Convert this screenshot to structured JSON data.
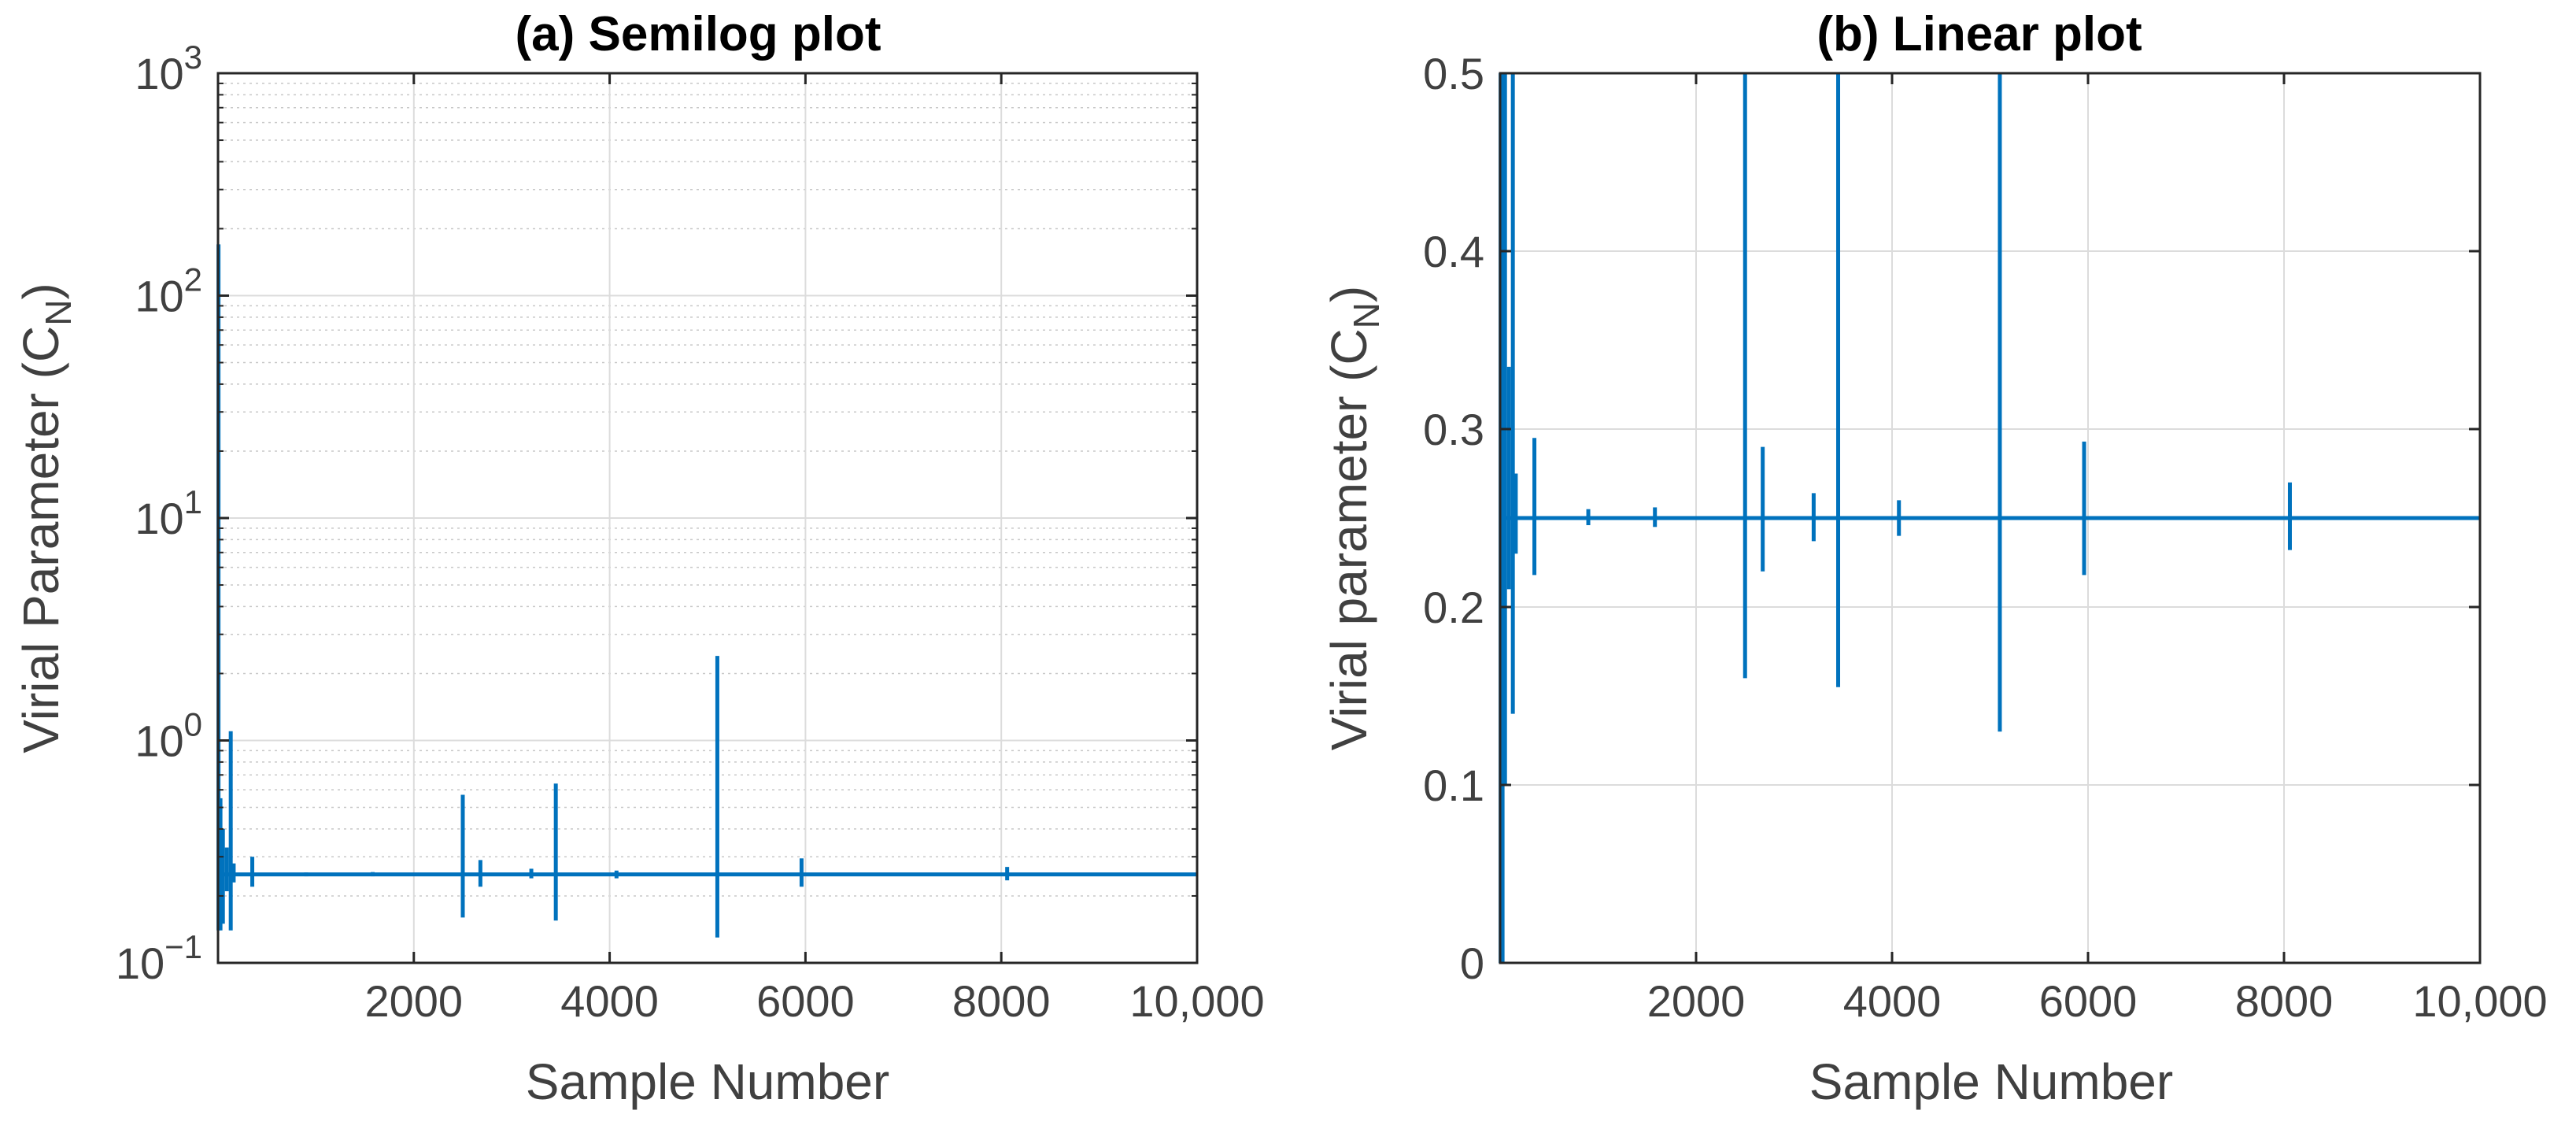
{
  "colors": {
    "series": "#0072BD",
    "grid": "#dcdcdc",
    "minor_grid": "#c8c8c8",
    "axis": "#262626",
    "background": "#ffffff"
  },
  "chart_data": [
    {
      "type": "line",
      "title": "(a) Semilog plot",
      "xlabel": "Sample Number",
      "ylabel": "Virial Parameter (C",
      "ylabel_subscript": "N",
      "ylabel_suffix": ")",
      "yscale": "log",
      "xlim": [
        0,
        10000
      ],
      "ylim": [
        0.1,
        1000
      ],
      "grid": true,
      "minor_grid": true,
      "xticks": [
        2000,
        4000,
        6000,
        8000,
        10000
      ],
      "xtick_labels": [
        "2000",
        "4000",
        "6000",
        "8000",
        "10,000"
      ],
      "yticks": [
        0.1,
        1,
        10,
        100,
        1000
      ],
      "ytick_labels": [
        {
          "base": "10",
          "exp": "−1"
        },
        {
          "base": "10",
          "exp": "0"
        },
        {
          "base": "10",
          "exp": "1"
        },
        {
          "base": "10",
          "exp": "2"
        },
        {
          "base": "10",
          "exp": "3"
        }
      ],
      "baseline": 0.25,
      "spikes": [
        {
          "x": 5,
          "min": 0.14,
          "max": 170
        },
        {
          "x": 25,
          "min": 0.14,
          "max": 0.55
        },
        {
          "x": 50,
          "min": 0.15,
          "max": 0.4
        },
        {
          "x": 90,
          "min": 0.21,
          "max": 0.33
        },
        {
          "x": 130,
          "min": 0.14,
          "max": 1.1
        },
        {
          "x": 160,
          "min": 0.23,
          "max": 0.28
        },
        {
          "x": 350,
          "min": 0.22,
          "max": 0.3
        },
        {
          "x": 900,
          "min": 0.245,
          "max": 0.255
        },
        {
          "x": 1580,
          "min": 0.245,
          "max": 0.256
        },
        {
          "x": 2500,
          "min": 0.16,
          "max": 0.57
        },
        {
          "x": 2680,
          "min": 0.22,
          "max": 0.29
        },
        {
          "x": 3200,
          "min": 0.24,
          "max": 0.265
        },
        {
          "x": 3450,
          "min": 0.155,
          "max": 0.64
        },
        {
          "x": 4070,
          "min": 0.24,
          "max": 0.26
        },
        {
          "x": 5100,
          "min": 0.13,
          "max": 2.4
        },
        {
          "x": 5960,
          "min": 0.22,
          "max": 0.295
        },
        {
          "x": 8060,
          "min": 0.235,
          "max": 0.27
        }
      ]
    },
    {
      "type": "line",
      "title": "(b) Linear plot",
      "xlabel": "Sample Number",
      "ylabel": "Virial parameter (C",
      "ylabel_subscript": "N",
      "ylabel_suffix": ")",
      "yscale": "linear",
      "xlim": [
        0,
        10000
      ],
      "ylim": [
        0,
        0.5
      ],
      "grid": true,
      "minor_grid": false,
      "xticks": [
        2000,
        4000,
        6000,
        8000,
        10000
      ],
      "xtick_labels": [
        "2000",
        "4000",
        "6000",
        "8000",
        "10,000"
      ],
      "yticks": [
        0,
        0.1,
        0.2,
        0.3,
        0.4,
        0.5
      ],
      "ytick_labels": [
        "0",
        "0.1",
        "0.2",
        "0.3",
        "0.4",
        "0.5"
      ],
      "baseline": 0.25,
      "spikes": [
        {
          "x": 5,
          "min": 0,
          "max": 0.5
        },
        {
          "x": 25,
          "min": 0,
          "max": 0.5
        },
        {
          "x": 50,
          "min": 0.1,
          "max": 0.5
        },
        {
          "x": 90,
          "min": 0.21,
          "max": 0.335
        },
        {
          "x": 130,
          "min": 0.14,
          "max": 0.5
        },
        {
          "x": 160,
          "min": 0.23,
          "max": 0.275
        },
        {
          "x": 350,
          "min": 0.218,
          "max": 0.295
        },
        {
          "x": 900,
          "min": 0.246,
          "max": 0.255
        },
        {
          "x": 1580,
          "min": 0.245,
          "max": 0.256
        },
        {
          "x": 2500,
          "min": 0.16,
          "max": 0.5
        },
        {
          "x": 2680,
          "min": 0.22,
          "max": 0.29
        },
        {
          "x": 3200,
          "min": 0.237,
          "max": 0.264
        },
        {
          "x": 3450,
          "min": 0.155,
          "max": 0.5
        },
        {
          "x": 4070,
          "min": 0.24,
          "max": 0.26
        },
        {
          "x": 5100,
          "min": 0.13,
          "max": 0.5
        },
        {
          "x": 5960,
          "min": 0.218,
          "max": 0.293
        },
        {
          "x": 8060,
          "min": 0.232,
          "max": 0.27
        }
      ]
    }
  ]
}
